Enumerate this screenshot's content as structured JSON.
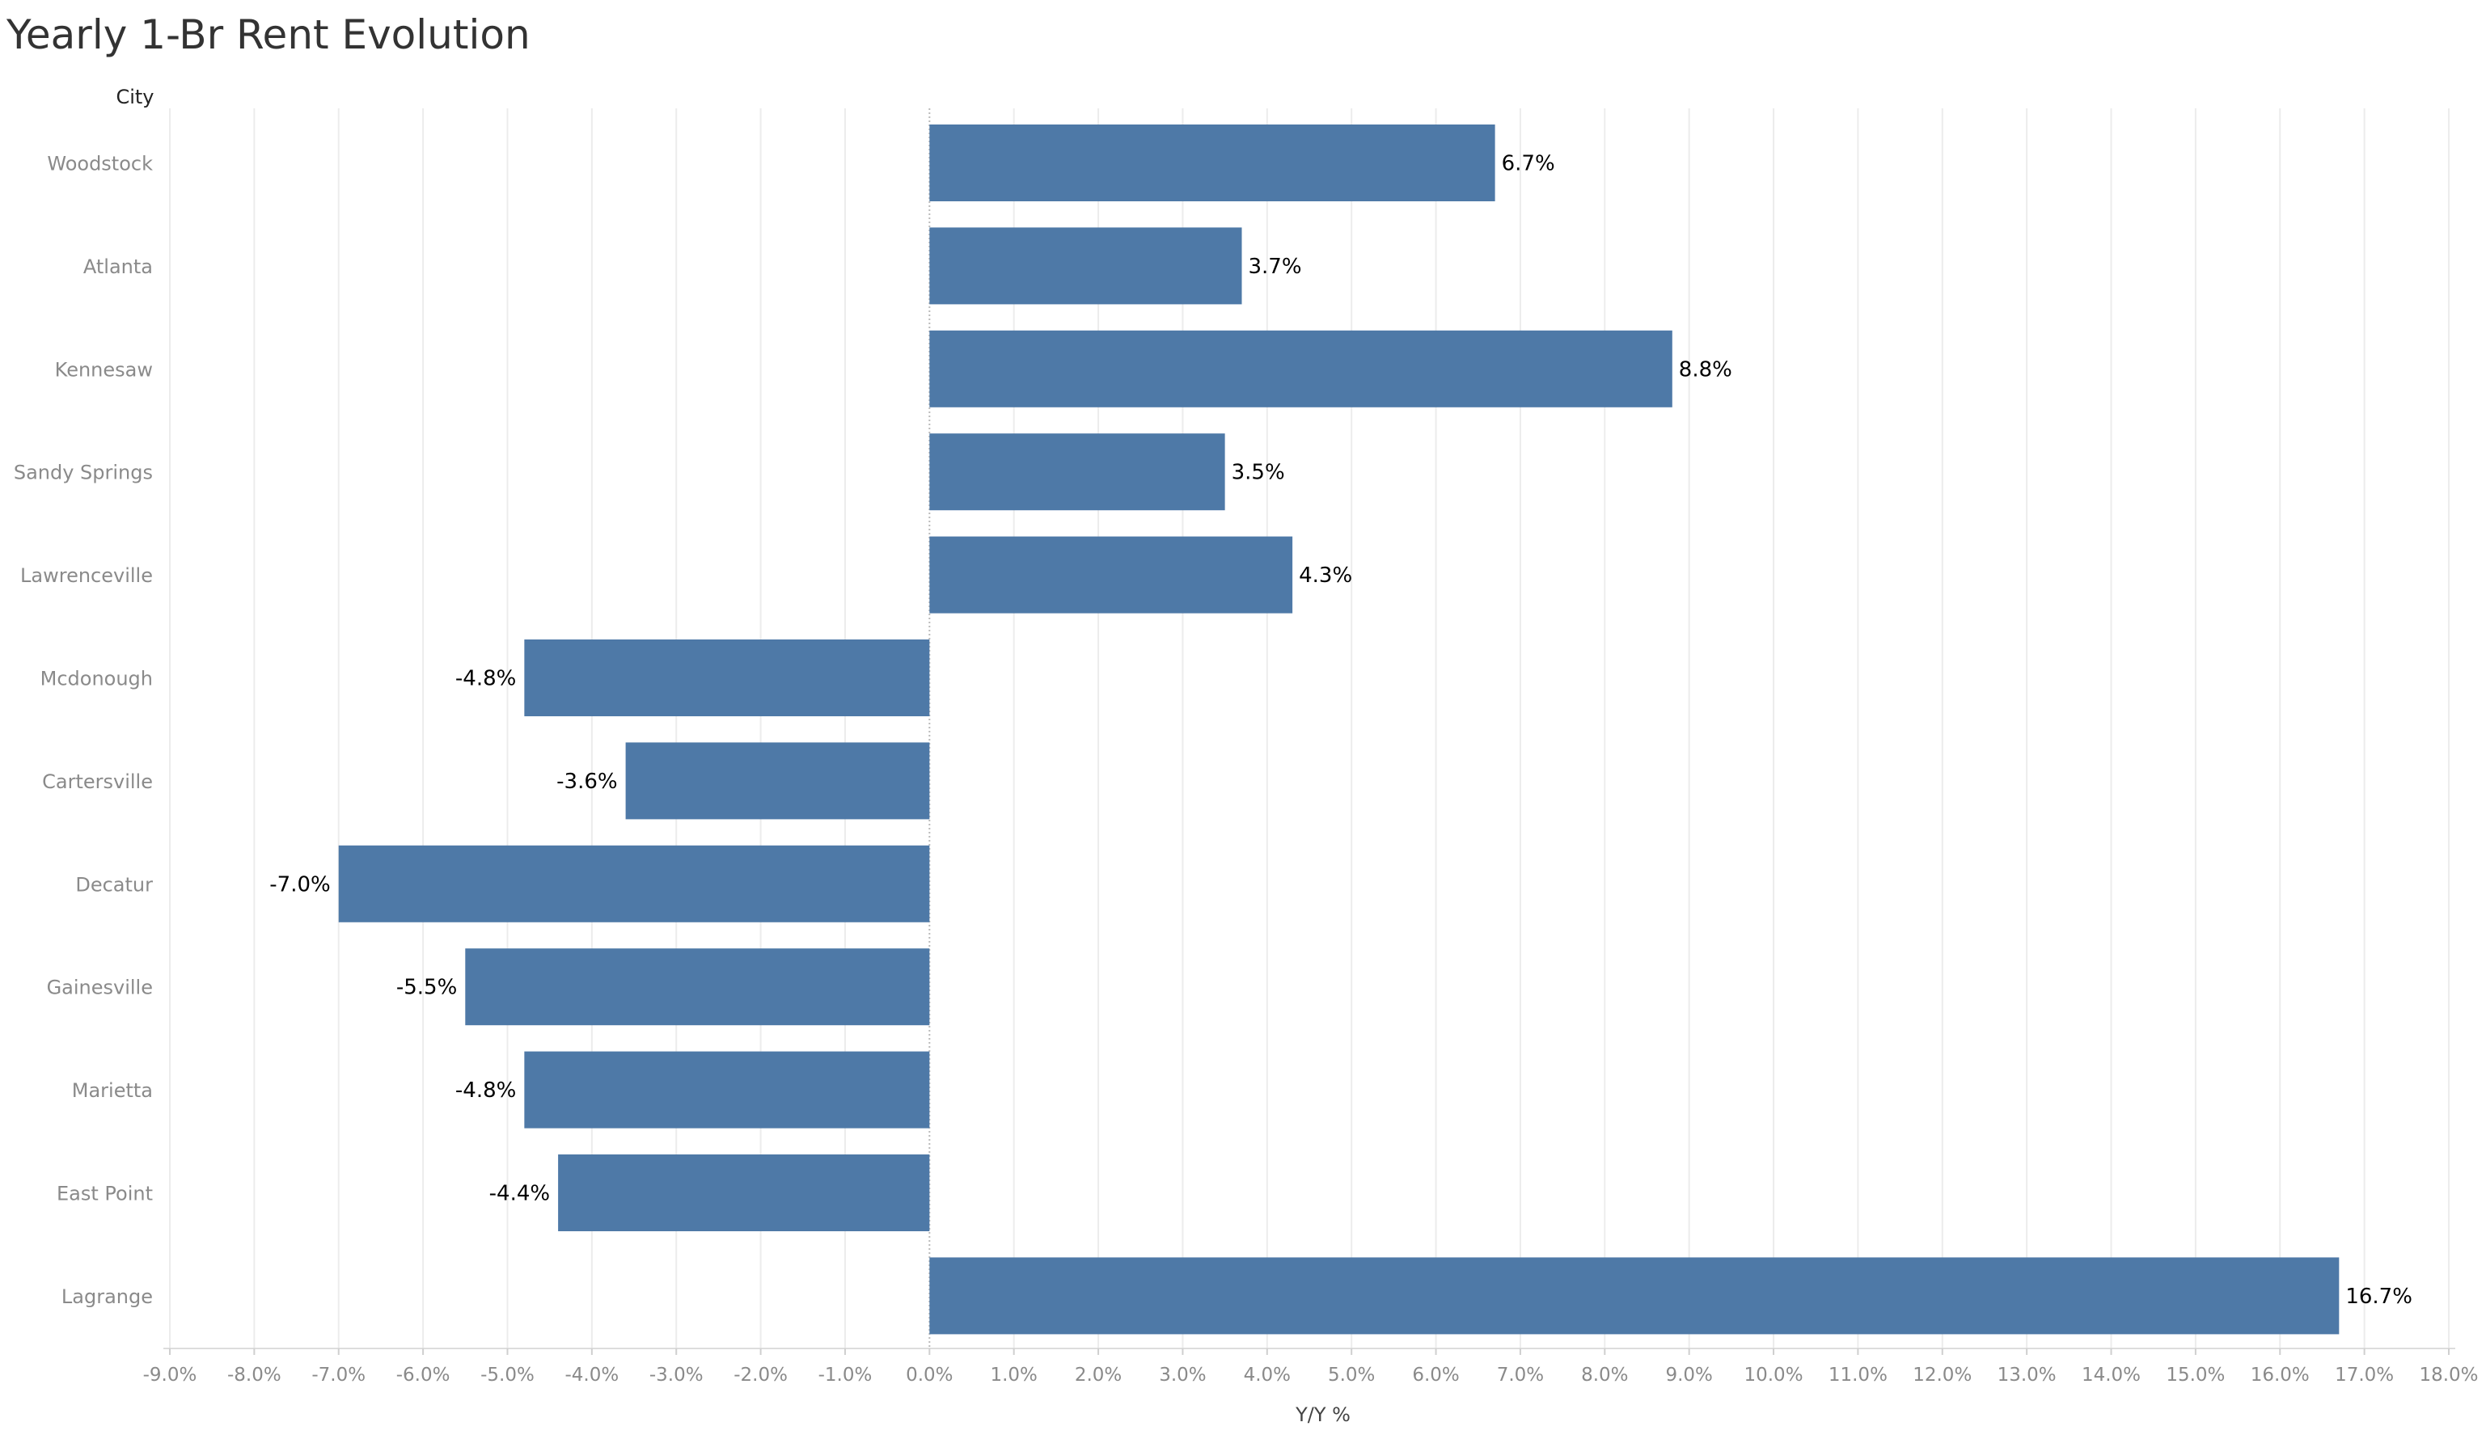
{
  "title": "Yearly 1-Br Rent Evolution",
  "colors": {
    "bar": "#4e79a7",
    "grid": "#ececec",
    "zero_line": "#b9b9b9",
    "axis_label": "#8a8a8a",
    "data_label": "#000000"
  },
  "chart_data": {
    "type": "bar",
    "orientation": "horizontal",
    "title": "Yearly 1-Br Rent Evolution",
    "ylabel": "City",
    "xlabel": "Y/Y %",
    "categories": [
      "Woodstock",
      "Atlanta",
      "Kennesaw",
      "Sandy Springs",
      "Lawrenceville",
      "Mcdonough",
      "Cartersville",
      "Decatur",
      "Gainesville",
      "Marietta",
      "East Point",
      "Lagrange"
    ],
    "values": [
      6.7,
      3.7,
      8.8,
      3.5,
      4.3,
      -4.8,
      -3.6,
      -7.0,
      -5.5,
      -4.8,
      -4.4,
      16.7
    ],
    "data_labels": [
      "6.7%",
      "3.7%",
      "8.8%",
      "3.5%",
      "4.3%",
      "-4.8%",
      "-3.6%",
      "-7.0%",
      "-5.5%",
      "-4.8%",
      "-4.4%",
      "16.7%"
    ],
    "xlim": [
      -9,
      18
    ],
    "xticks": [
      -9,
      -8,
      -7,
      -6,
      -5,
      -4,
      -3,
      -2,
      -1,
      0,
      1,
      2,
      3,
      4,
      5,
      6,
      7,
      8,
      9,
      10,
      11,
      12,
      13,
      14,
      15,
      16,
      17,
      18
    ],
    "xtick_labels": [
      "-9.0%",
      "-8.0%",
      "-7.0%",
      "-6.0%",
      "-5.0%",
      "-4.0%",
      "-3.0%",
      "-2.0%",
      "-1.0%",
      "0.0%",
      "1.0%",
      "2.0%",
      "3.0%",
      "4.0%",
      "5.0%",
      "6.0%",
      "7.0%",
      "8.0%",
      "9.0%",
      "10.0%",
      "11.0%",
      "12.0%",
      "13.0%",
      "14.0%",
      "15.0%",
      "16.0%",
      "17.0%",
      "18.0%"
    ],
    "grid": true,
    "legend": "none"
  }
}
